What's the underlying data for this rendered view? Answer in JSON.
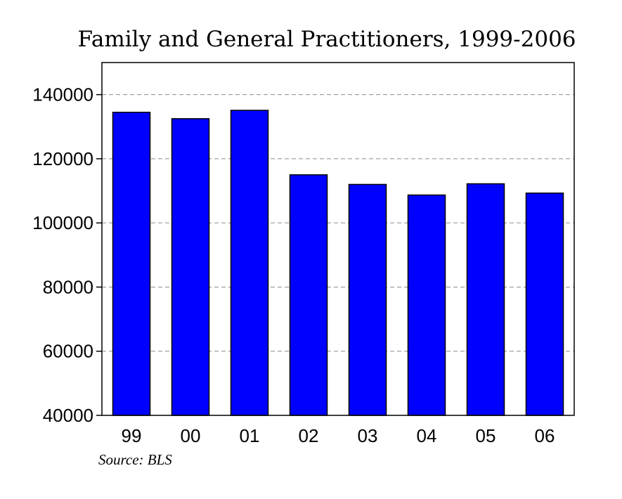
{
  "chart_data": {
    "type": "bar",
    "title": "Family and General Practitioners, 1999-2006",
    "categories": [
      "99",
      "00",
      "01",
      "02",
      "03",
      "04",
      "05",
      "06"
    ],
    "values": [
      134500,
      132500,
      135100,
      115000,
      112000,
      108700,
      112200,
      109300
    ],
    "ylim": [
      40000,
      150000
    ],
    "yticks": [
      40000,
      60000,
      80000,
      100000,
      120000,
      140000
    ],
    "grid": true,
    "bar_color": "#0000ff",
    "source": "Source: BLS"
  }
}
